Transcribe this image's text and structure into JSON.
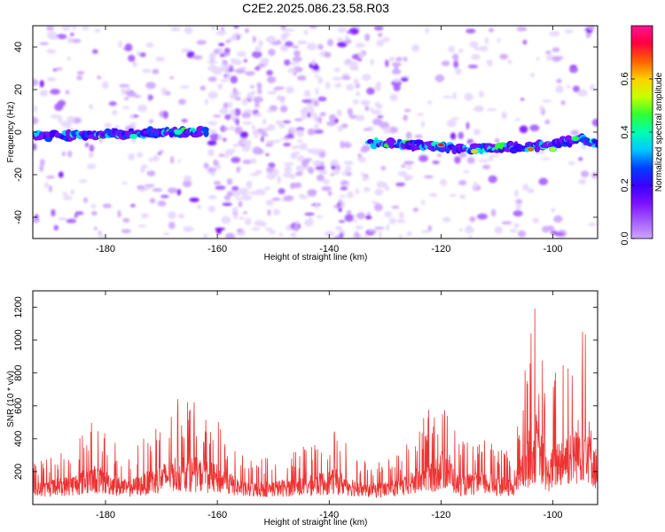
{
  "title": "C2E2.2025.086.23.58.R03",
  "colors": {
    "snr_line": "#ee3333",
    "colormap": [
      "#ffffff",
      "#e6d6ff",
      "#cda6ff",
      "#a45cff",
      "#7a10ff",
      "#3a00ff",
      "#0040ff",
      "#00c8ff",
      "#00ffb0",
      "#30ff30",
      "#c8ff00",
      "#ffd000",
      "#ff6000",
      "#ff0040",
      "#ff1493"
    ]
  },
  "chart_data": [
    {
      "type": "heatmap",
      "xlabel": "Height of straight line (km)",
      "ylabel": "Frequency (Hz)",
      "xlim": [
        -193,
        -92
      ],
      "ylim": [
        -50,
        50
      ],
      "xticks": [
        -180,
        -160,
        -140,
        -120,
        -100
      ],
      "yticks": [
        -40,
        -20,
        0,
        20,
        40
      ],
      "colorbar": {
        "label": "Normalized spectral amplitude",
        "range": [
          0,
          0.8
        ],
        "ticks": [
          0.0,
          0.2,
          0.4,
          0.6
        ]
      },
      "signal_band": {
        "segments": [
          {
            "x_start": -193,
            "x_end": -162,
            "freq_start": -3,
            "freq_end": 0
          },
          {
            "x_start": -133,
            "x_end": -92,
            "freq_start": -5,
            "freq_end": -3
          }
        ],
        "ridge_points": [
          {
            "x": -193,
            "freq": -2
          },
          {
            "x": -180,
            "freq": -1
          },
          {
            "x": -170,
            "freq": 0
          },
          {
            "x": -162,
            "freq": 0
          },
          {
            "x": -133,
            "freq": -5
          },
          {
            "x": -125,
            "freq": -6
          },
          {
            "x": -115,
            "freq": -8
          },
          {
            "x": -105,
            "freq": -7
          },
          {
            "x": -100,
            "freq": -6
          },
          {
            "x": -95,
            "freq": -3
          },
          {
            "x": -92,
            "freq": -6
          }
        ]
      }
    },
    {
      "type": "line",
      "xlabel": "Height of straight line (km)",
      "ylabel": "SNR (10 * v/v)",
      "xlim": [
        -193,
        -92
      ],
      "ylim": [
        0,
        1300
      ],
      "xticks": [
        -180,
        -160,
        -140,
        -120,
        -100
      ],
      "yticks": [
        200,
        400,
        600,
        800,
        1000,
        1200
      ],
      "envelope": [
        {
          "x": -193,
          "low": 20,
          "high": 260
        },
        {
          "x": -186,
          "low": 20,
          "high": 380
        },
        {
          "x": -182,
          "low": 20,
          "high": 520
        },
        {
          "x": -176,
          "low": 20,
          "high": 300
        },
        {
          "x": -170,
          "low": 20,
          "high": 520
        },
        {
          "x": -168,
          "low": 20,
          "high": 640
        },
        {
          "x": -165,
          "low": 20,
          "high": 650
        },
        {
          "x": -160,
          "low": 20,
          "high": 520
        },
        {
          "x": -155,
          "low": 20,
          "high": 280
        },
        {
          "x": -150,
          "low": 20,
          "high": 300
        },
        {
          "x": -144,
          "low": 20,
          "high": 360
        },
        {
          "x": -139,
          "low": 20,
          "high": 460
        },
        {
          "x": -133,
          "low": 20,
          "high": 250
        },
        {
          "x": -127,
          "low": 20,
          "high": 330
        },
        {
          "x": -121,
          "low": 20,
          "high": 640
        },
        {
          "x": -119,
          "low": 20,
          "high": 770
        },
        {
          "x": -117,
          "low": 20,
          "high": 380
        },
        {
          "x": -112,
          "low": 20,
          "high": 420
        },
        {
          "x": -107,
          "low": 20,
          "high": 300
        },
        {
          "x": -105,
          "low": 20,
          "high": 820
        },
        {
          "x": -103,
          "low": 20,
          "high": 1250
        },
        {
          "x": -101,
          "low": 20,
          "high": 600
        },
        {
          "x": -99,
          "low": 20,
          "high": 900
        },
        {
          "x": -96,
          "low": 20,
          "high": 1100
        },
        {
          "x": -94,
          "low": 20,
          "high": 1300
        },
        {
          "x": -92,
          "low": 20,
          "high": 650
        }
      ]
    }
  ]
}
